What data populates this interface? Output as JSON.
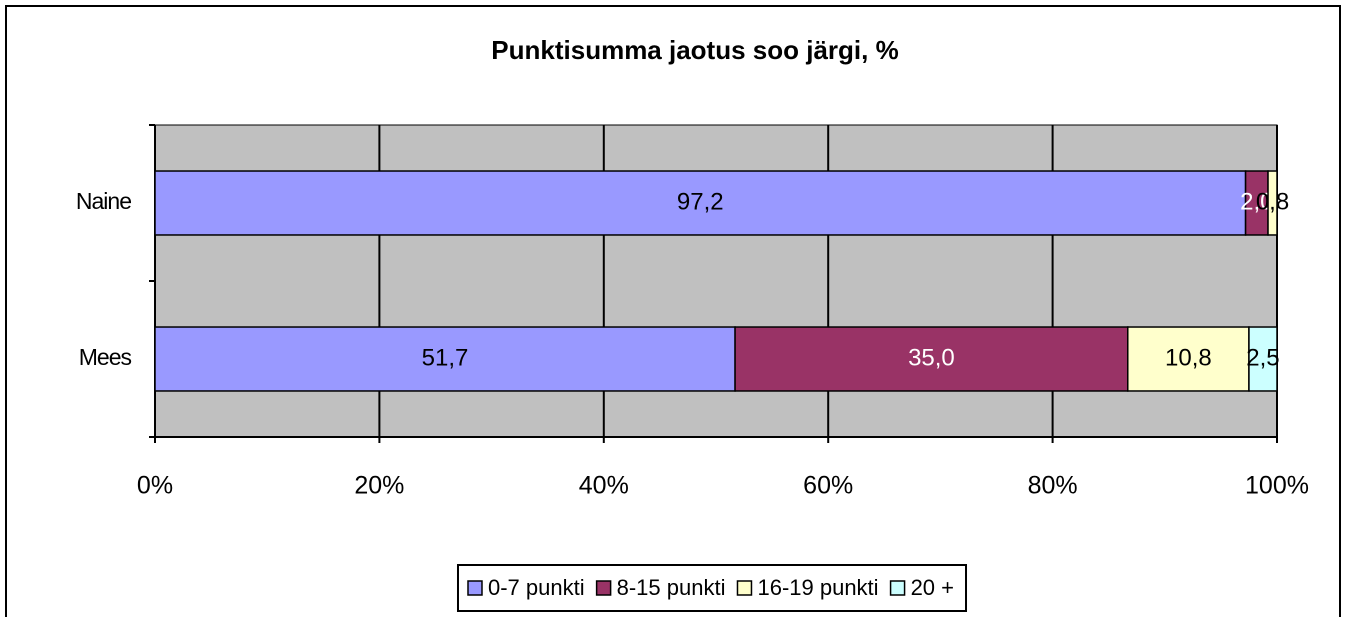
{
  "chart_data": {
    "type": "stacked_bar_horizontal",
    "title": "Punktisumma jaotus soo järgi, %",
    "categories": [
      "Naine",
      "Mees"
    ],
    "series": [
      {
        "name": "0-7 punkti",
        "color": "#9999ff",
        "values": [
          97.2,
          51.7
        ],
        "value_labels": [
          "97,2",
          "51,7"
        ]
      },
      {
        "name": "8-15 punkti",
        "color": "#993366",
        "values": [
          2.0,
          35.0
        ],
        "value_labels": [
          "2,0",
          "35,0"
        ]
      },
      {
        "name": "16-19 punkti",
        "color": "#ffffcc",
        "values": [
          0.8,
          10.8
        ],
        "value_labels": [
          "0,8",
          "10,8"
        ]
      },
      {
        "name": "20 +",
        "color": "#ccffff",
        "values": [
          null,
          2.5
        ],
        "value_labels": [
          null,
          "2,5"
        ]
      }
    ],
    "xlim": [
      0,
      100
    ],
    "xticks": [
      {
        "value": 0,
        "label": "0%"
      },
      {
        "value": 20,
        "label": "20%"
      },
      {
        "value": 40,
        "label": "40%"
      },
      {
        "value": 60,
        "label": "60%"
      },
      {
        "value": 80,
        "label": "80%"
      },
      {
        "value": 100,
        "label": "100%"
      }
    ],
    "plot_background": "#c0c0c0",
    "grid": true,
    "legend": "bottom"
  }
}
